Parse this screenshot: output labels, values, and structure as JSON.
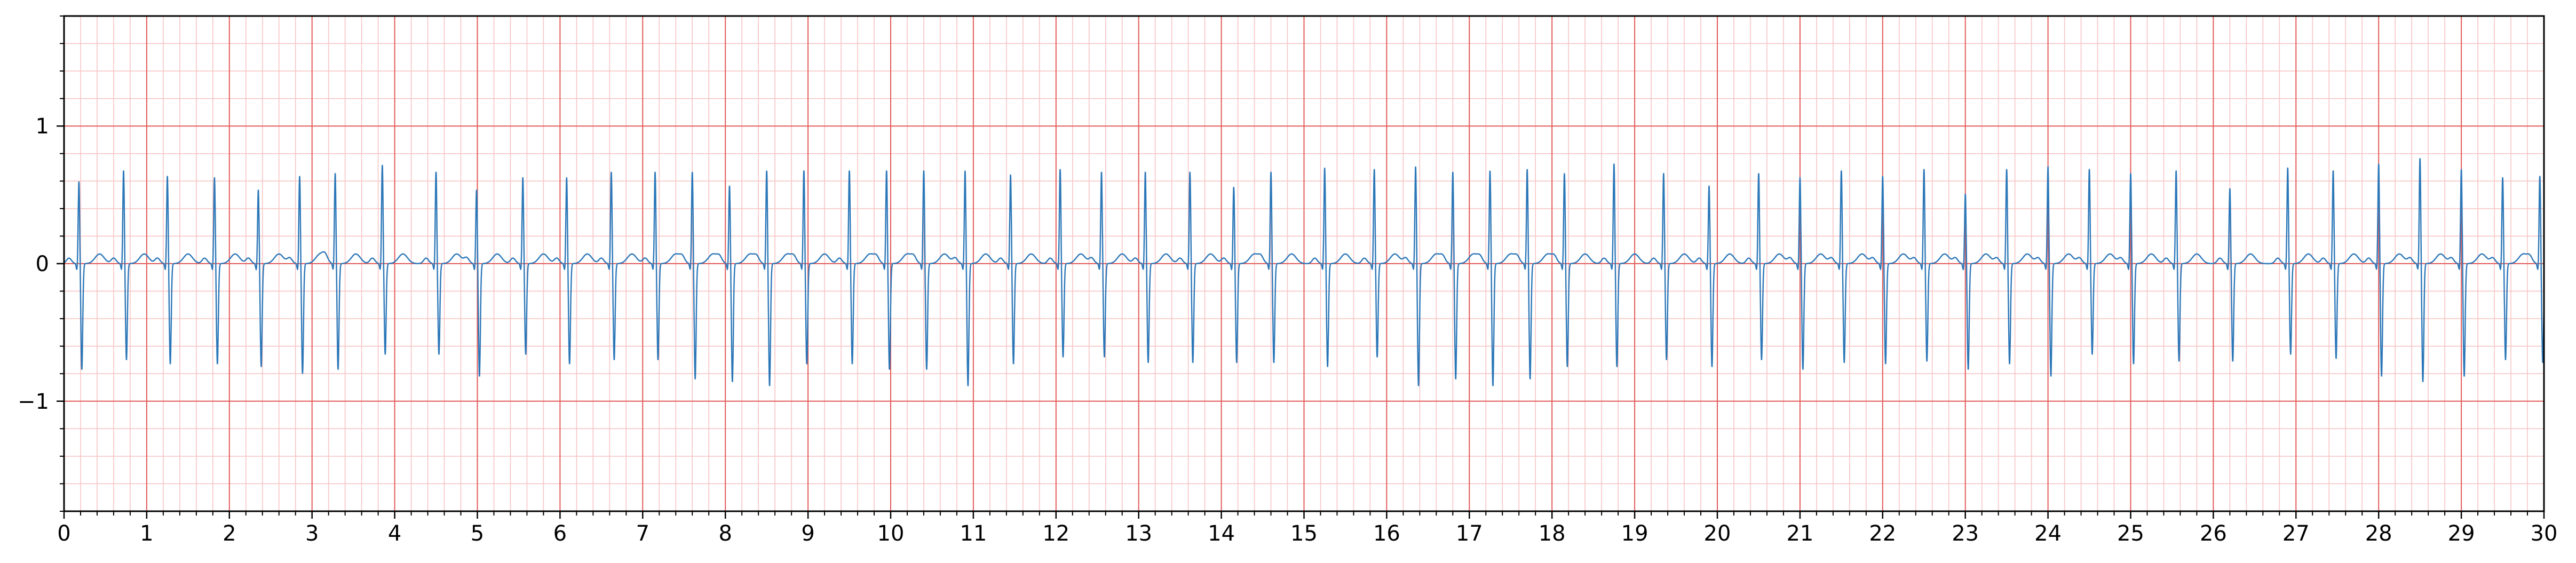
{
  "chart_data": {
    "type": "line",
    "title": "",
    "xlabel": "",
    "ylabel": "",
    "xlim": [
      0,
      30
    ],
    "ylim": [
      -1.8,
      1.8
    ],
    "x_ticks": [
      0,
      1,
      2,
      3,
      4,
      5,
      6,
      7,
      8,
      9,
      10,
      11,
      12,
      13,
      14,
      15,
      16,
      17,
      18,
      19,
      20,
      21,
      22,
      23,
      24,
      25,
      26,
      27,
      28,
      29,
      30
    ],
    "x_tick_labels": [
      "0",
      "1",
      "2",
      "3",
      "4",
      "5",
      "6",
      "7",
      "8",
      "9",
      "10",
      "11",
      "12",
      "13",
      "14",
      "15",
      "16",
      "17",
      "18",
      "19",
      "20",
      "21",
      "22",
      "23",
      "24",
      "25",
      "26",
      "27",
      "28",
      "29",
      "30"
    ],
    "y_ticks": [
      -1,
      0,
      1
    ],
    "y_tick_labels": [
      "−1",
      "0",
      "1"
    ],
    "grid": {
      "major_x": 1.0,
      "major_y": 1.0,
      "minor_x": 0.2,
      "minor_y": 0.2
    },
    "series": [
      {
        "beats": [
          {
            "t": 0.18,
            "r": 0.61,
            "s": -0.77
          },
          {
            "t": 0.72,
            "r": 0.69,
            "s": -0.7
          },
          {
            "t": 1.25,
            "r": 0.65,
            "s": -0.73
          },
          {
            "t": 1.82,
            "r": 0.64,
            "s": -0.73
          },
          {
            "t": 2.35,
            "r": 0.55,
            "s": -0.75
          },
          {
            "t": 2.85,
            "r": 0.65,
            "s": -0.8
          },
          {
            "t": 3.28,
            "r": 0.67,
            "s": -0.77
          },
          {
            "t": 3.85,
            "r": 0.73,
            "s": -0.66
          },
          {
            "t": 4.5,
            "r": 0.68,
            "s": -0.66
          },
          {
            "t": 4.99,
            "r": 0.55,
            "s": -0.82
          },
          {
            "t": 5.55,
            "r": 0.64,
            "s": -0.66
          },
          {
            "t": 6.08,
            "r": 0.64,
            "s": -0.73
          },
          {
            "t": 6.62,
            "r": 0.68,
            "s": -0.7
          },
          {
            "t": 7.15,
            "r": 0.68,
            "s": -0.7
          },
          {
            "t": 7.6,
            "r": 0.68,
            "s": -0.84
          },
          {
            "t": 8.05,
            "r": 0.58,
            "s": -0.86
          },
          {
            "t": 8.5,
            "r": 0.69,
            "s": -0.89
          },
          {
            "t": 8.95,
            "r": 0.69,
            "s": -0.73
          },
          {
            "t": 9.5,
            "r": 0.69,
            "s": -0.73
          },
          {
            "t": 9.95,
            "r": 0.69,
            "s": -0.77
          },
          {
            "t": 10.4,
            "r": 0.69,
            "s": -0.77
          },
          {
            "t": 10.9,
            "r": 0.69,
            "s": -0.89
          },
          {
            "t": 11.45,
            "r": 0.66,
            "s": -0.73
          },
          {
            "t": 12.05,
            "r": 0.7,
            "s": -0.68
          },
          {
            "t": 12.55,
            "r": 0.68,
            "s": -0.68
          },
          {
            "t": 13.08,
            "r": 0.68,
            "s": -0.72
          },
          {
            "t": 13.62,
            "r": 0.68,
            "s": -0.72
          },
          {
            "t": 14.15,
            "r": 0.57,
            "s": -0.72
          },
          {
            "t": 14.6,
            "r": 0.68,
            "s": -0.72
          },
          {
            "t": 15.25,
            "r": 0.71,
            "s": -0.75
          },
          {
            "t": 15.85,
            "r": 0.7,
            "s": -0.68
          },
          {
            "t": 16.35,
            "r": 0.72,
            "s": -0.89
          },
          {
            "t": 16.8,
            "r": 0.68,
            "s": -0.84
          },
          {
            "t": 17.25,
            "r": 0.69,
            "s": -0.89
          },
          {
            "t": 17.7,
            "r": 0.7,
            "s": -0.84
          },
          {
            "t": 18.15,
            "r": 0.67,
            "s": -0.75
          },
          {
            "t": 18.75,
            "r": 0.74,
            "s": -0.75
          },
          {
            "t": 19.35,
            "r": 0.67,
            "s": -0.7
          },
          {
            "t": 19.9,
            "r": 0.58,
            "s": -0.75
          },
          {
            "t": 20.5,
            "r": 0.67,
            "s": -0.7
          },
          {
            "t": 21.0,
            "r": 0.64,
            "s": -0.77
          },
          {
            "t": 21.5,
            "r": 0.69,
            "s": -0.72
          },
          {
            "t": 22.0,
            "r": 0.65,
            "s": -0.73
          },
          {
            "t": 22.5,
            "r": 0.7,
            "s": -0.71
          },
          {
            "t": 23.0,
            "r": 0.52,
            "s": -0.77
          },
          {
            "t": 23.5,
            "r": 0.7,
            "s": -0.73
          },
          {
            "t": 24.0,
            "r": 0.72,
            "s": -0.82
          },
          {
            "t": 24.5,
            "r": 0.7,
            "s": -0.66
          },
          {
            "t": 25.0,
            "r": 0.67,
            "s": -0.73
          },
          {
            "t": 25.55,
            "r": 0.69,
            "s": -0.71
          },
          {
            "t": 26.2,
            "r": 0.56,
            "s": -0.71
          },
          {
            "t": 26.9,
            "r": 0.71,
            "s": -0.66
          },
          {
            "t": 27.45,
            "r": 0.69,
            "s": -0.69
          },
          {
            "t": 28.0,
            "r": 0.74,
            "s": -0.82
          },
          {
            "t": 28.5,
            "r": 0.78,
            "s": -0.86
          },
          {
            "t": 29.0,
            "r": 0.7,
            "s": -0.82
          },
          {
            "t": 29.5,
            "r": 0.64,
            "s": -0.7
          },
          {
            "t": 29.95,
            "r": 0.65,
            "s": -0.72
          }
        ]
      }
    ],
    "colors": {
      "trace": "#2c77b8",
      "major_grid": "#e35a5a",
      "minor_grid": "#f8c4c4",
      "axis": "#000000",
      "background": "#ffffff"
    }
  }
}
